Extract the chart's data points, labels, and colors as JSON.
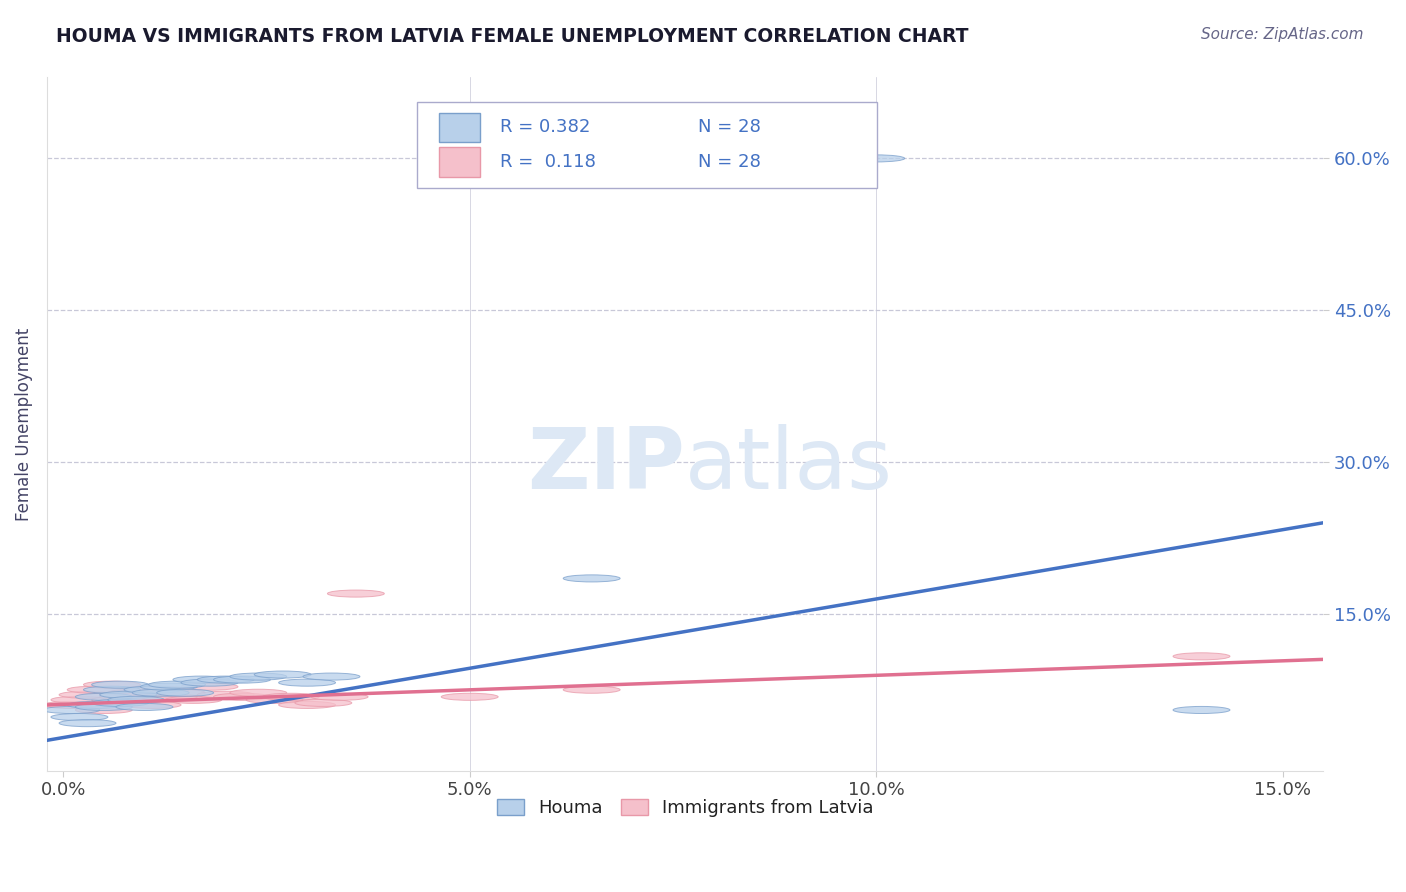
{
  "title": "HOUMA VS IMMIGRANTS FROM LATVIA FEMALE UNEMPLOYMENT CORRELATION CHART",
  "source": "Source: ZipAtlas.com",
  "xlabel": "",
  "ylabel": "Female Unemployment",
  "xlim": [
    -0.002,
    0.155
  ],
  "ylim": [
    -0.005,
    0.68
  ],
  "yticks": [
    0.15,
    0.3,
    0.45,
    0.6
  ],
  "ytick_labels": [
    "15.0%",
    "30.0%",
    "45.0%",
    "60.0%"
  ],
  "xticks": [
    0.0,
    0.05,
    0.1,
    0.15
  ],
  "xtick_labels": [
    "0.0%",
    "5.0%",
    "10.0%",
    "15.0%"
  ],
  "legend_r_houma": "R = 0.382",
  "legend_n_houma": "N = 28",
  "legend_r_immigrants": "R =  0.118",
  "legend_n_immigrants": "N = 28",
  "houma_color": "#b8d0ea",
  "immigrants_color": "#f5c0cb",
  "houma_marker_edge": "#7a9fcb",
  "immigrants_marker_edge": "#e898a8",
  "houma_line_color": "#4472C4",
  "immigrants_line_color": "#e07090",
  "watermark_color": "#dde8f5",
  "background_color": "#ffffff",
  "grid_color": "#c8c8d8",
  "title_color": "#1a1a2e",
  "axis_label_color": "#444466",
  "ytick_color": "#4472C4",
  "xtick_color": "#444444",
  "legend_box_color": "#4472C4",
  "houma_x": [
    0.001,
    0.002,
    0.003,
    0.004,
    0.005,
    0.005,
    0.006,
    0.007,
    0.007,
    0.008,
    0.009,
    0.01,
    0.011,
    0.012,
    0.013,
    0.014,
    0.015,
    0.017,
    0.018,
    0.02,
    0.022,
    0.024,
    0.027,
    0.03,
    0.033,
    0.065,
    0.1,
    0.14
  ],
  "houma_y": [
    0.055,
    0.048,
    0.042,
    0.06,
    0.058,
    0.068,
    0.075,
    0.08,
    0.062,
    0.07,
    0.065,
    0.058,
    0.075,
    0.072,
    0.078,
    0.08,
    0.072,
    0.085,
    0.082,
    0.085,
    0.085,
    0.088,
    0.09,
    0.082,
    0.088,
    0.185,
    0.6,
    0.055
  ],
  "immigrants_x": [
    0.001,
    0.002,
    0.003,
    0.004,
    0.005,
    0.006,
    0.007,
    0.008,
    0.009,
    0.01,
    0.011,
    0.012,
    0.013,
    0.014,
    0.016,
    0.018,
    0.02,
    0.022,
    0.024,
    0.026,
    0.028,
    0.03,
    0.032,
    0.034,
    0.036,
    0.05,
    0.065,
    0.14
  ],
  "immigrants_y": [
    0.06,
    0.065,
    0.07,
    0.075,
    0.055,
    0.08,
    0.065,
    0.068,
    0.072,
    0.065,
    0.06,
    0.075,
    0.068,
    0.072,
    0.065,
    0.078,
    0.07,
    0.068,
    0.072,
    0.065,
    0.068,
    0.06,
    0.062,
    0.068,
    0.17,
    0.068,
    0.075,
    0.108
  ],
  "houma_trend_x": [
    -0.002,
    0.155
  ],
  "houma_trend_y": [
    0.025,
    0.24
  ],
  "immigrants_trend_x": [
    -0.002,
    0.155
  ],
  "immigrants_trend_y": [
    0.06,
    0.105
  ],
  "marker_size": 0.007
}
